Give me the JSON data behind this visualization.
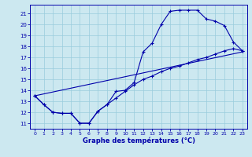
{
  "xlabel": "Graphe des températures (°C)",
  "bg_color": "#cce8f0",
  "line_color": "#0000aa",
  "grid_color": "#99ccdd",
  "xlim": [
    -0.5,
    23.5
  ],
  "ylim": [
    10.5,
    21.8
  ],
  "xticks": [
    0,
    1,
    2,
    3,
    4,
    5,
    6,
    7,
    8,
    9,
    10,
    11,
    12,
    13,
    14,
    15,
    16,
    17,
    18,
    19,
    20,
    21,
    22,
    23
  ],
  "yticks": [
    11,
    12,
    13,
    14,
    15,
    16,
    17,
    18,
    19,
    20,
    21
  ],
  "curve1_x": [
    0,
    1,
    2,
    3,
    4,
    5,
    6,
    7,
    8,
    9,
    10,
    11,
    12,
    13,
    14,
    15,
    16,
    17,
    18,
    19,
    20,
    21,
    22,
    23
  ],
  "curve1_y": [
    13.5,
    12.7,
    12.0,
    11.9,
    11.9,
    11.0,
    11.0,
    12.1,
    12.7,
    13.9,
    14.0,
    14.7,
    17.5,
    18.3,
    20.0,
    21.2,
    21.3,
    21.3,
    21.3,
    20.5,
    20.3,
    19.9,
    18.4,
    17.6
  ],
  "curve2_x": [
    0,
    1,
    2,
    3,
    4,
    5,
    6,
    7,
    8,
    9,
    10,
    11,
    12,
    13,
    14,
    15,
    16,
    17,
    18,
    19,
    20,
    21,
    22,
    23
  ],
  "curve2_y": [
    13.5,
    12.7,
    12.0,
    11.9,
    11.9,
    11.0,
    11.0,
    12.1,
    12.7,
    13.3,
    13.9,
    14.5,
    15.0,
    15.3,
    15.7,
    16.0,
    16.2,
    16.5,
    16.8,
    17.0,
    17.3,
    17.6,
    17.8,
    17.6
  ],
  "curve3_x": [
    0,
    23
  ],
  "curve3_y": [
    13.5,
    17.5
  ]
}
